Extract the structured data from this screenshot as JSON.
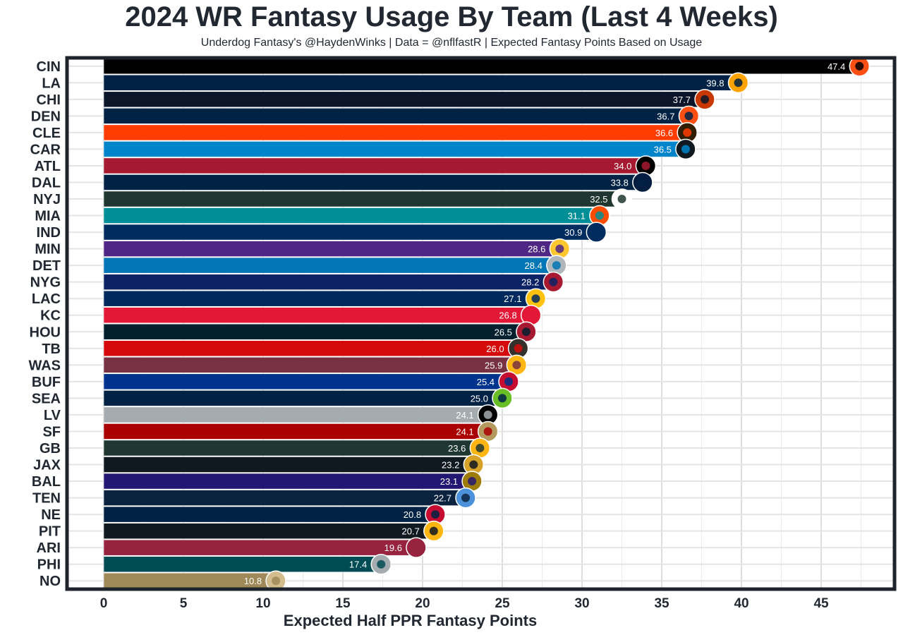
{
  "chart_data": {
    "type": "bar",
    "orientation": "horizontal",
    "title": "2024 WR Fantasy Usage By Team (Last 4 Weeks)",
    "subtitle": "Underdog Fantasy's @HaydenWinks | Data = @nflfastR | Expected Fantasy Points Based on Usage",
    "xlabel": "Expected Half PPR Fantasy Points",
    "ylabel": "",
    "xlim": [
      -2.3,
      49.6
    ],
    "xticks": [
      0,
      5,
      10,
      15,
      20,
      25,
      30,
      35,
      40,
      45
    ],
    "grid": true,
    "categories": [
      "CIN",
      "LA",
      "CHI",
      "DEN",
      "CLE",
      "CAR",
      "ATL",
      "DAL",
      "NYJ",
      "MIA",
      "IND",
      "MIN",
      "DET",
      "NYG",
      "LAC",
      "KC",
      "HOU",
      "TB",
      "WAS",
      "BUF",
      "SEA",
      "LV",
      "SF",
      "GB",
      "JAX",
      "BAL",
      "TEN",
      "NE",
      "PIT",
      "ARI",
      "PHI",
      "NO"
    ],
    "values": [
      47.4,
      39.8,
      37.7,
      36.7,
      36.6,
      36.5,
      34.0,
      33.8,
      32.5,
      31.1,
      30.9,
      28.6,
      28.4,
      28.2,
      27.1,
      26.8,
      26.5,
      26.0,
      25.9,
      25.4,
      25.0,
      24.1,
      24.1,
      23.6,
      23.2,
      23.1,
      22.7,
      20.8,
      20.7,
      19.6,
      17.4,
      10.8
    ],
    "value_labels": [
      "47.4",
      "39.8",
      "37.7",
      "36.7",
      "36.6",
      "36.5",
      "34.0",
      "33.8",
      "32.5",
      "31.1",
      "30.9",
      "28.6",
      "28.4",
      "28.2",
      "27.1",
      "26.8",
      "26.5",
      "26.0",
      "25.9",
      "25.4",
      "25.0",
      "24.1",
      "24.1",
      "23.6",
      "23.2",
      "23.1",
      "22.7",
      "20.8",
      "20.7",
      "19.6",
      "17.4",
      "10.8"
    ],
    "colors": [
      "#000000",
      "#002244",
      "#0B162A",
      "#002244",
      "#FF3C00",
      "#0085CA",
      "#A71930",
      "#002244",
      "#203731",
      "#008E97",
      "#002C5F",
      "#4F2683",
      "#0076B6",
      "#0B2265",
      "#002A5E",
      "#E31837",
      "#03202F",
      "#D50A0A",
      "#773141",
      "#00338D",
      "#002244",
      "#A5ACAF",
      "#AA0000",
      "#203731",
      "#101820",
      "#241773",
      "#0C2340",
      "#002244",
      "#101820",
      "#97233F",
      "#004C54",
      "#9F8958"
    ],
    "logo_colors": [
      "#FB4F14",
      "#FFA300",
      "#C83803",
      "#FB4F14",
      "#311D00",
      "#101820",
      "#000000",
      "#041E42",
      "#FFFFFF",
      "#FC4C02",
      "#002C5F",
      "#FFC62F",
      "#B0B7BC",
      "#A71930",
      "#FFC20E",
      "#E31837",
      "#A71930",
      "#34302B",
      "#FFB612",
      "#C60C30",
      "#69BE28",
      "#000000",
      "#B3995D",
      "#FFB612",
      "#D7A22A",
      "#9E7C0C",
      "#4B92DB",
      "#C60C30",
      "#FFB612",
      "#97233F",
      "#A5ACAF",
      "#D3BC8D"
    ]
  }
}
